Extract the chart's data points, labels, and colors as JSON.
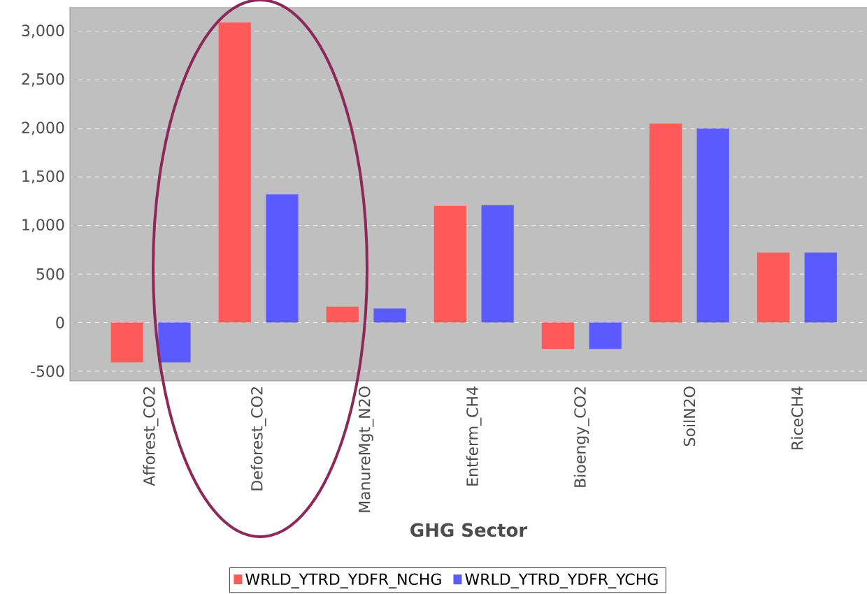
{
  "chart_data": {
    "type": "bar",
    "xlabel": "GHG Sector",
    "categories": [
      "Afforest_CO2",
      "Deforest_CO2",
      "ManureMgt_N2O",
      "Entferm_CH4",
      "Bioengy_CO2",
      "SoilN2O",
      "RiceCH4"
    ],
    "series": [
      {
        "name": "WRLD_YTRD_YDFR_NCHG",
        "color": "#ff5a5a",
        "values": [
          -410,
          3090,
          165,
          1200,
          -270,
          2050,
          720
        ]
      },
      {
        "name": "WRLD_YTRD_YDFR_YCHG",
        "color": "#5a5aff",
        "values": [
          -410,
          1320,
          145,
          1210,
          -270,
          2000,
          720
        ]
      }
    ],
    "ylim": [
      -600,
      3250
    ],
    "yticks": [
      {
        "value": -500,
        "label": "-500"
      },
      0,
      500,
      {
        "value": 1000,
        "label": "1,000"
      },
      {
        "value": 1500,
        "label": "1,500"
      },
      {
        "value": 2000,
        "label": "2,000"
      },
      {
        "value": 2500,
        "label": "2,500"
      },
      {
        "value": 3000,
        "label": "3,000"
      }
    ],
    "grid": "y",
    "legend": "bottom"
  }
}
